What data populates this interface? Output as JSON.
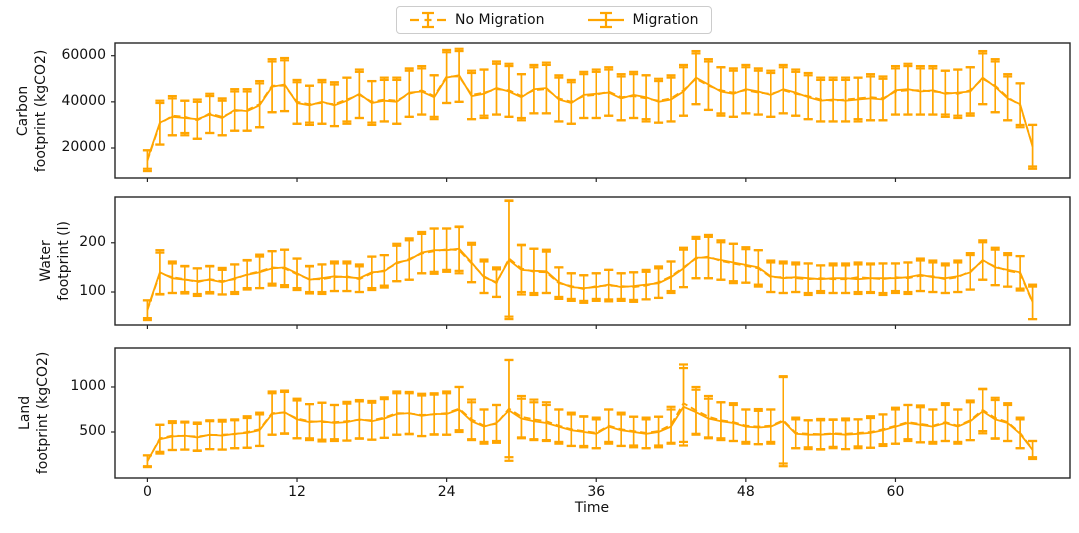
{
  "figure": {
    "xlabel": "Time",
    "x_ticks": [
      0,
      12,
      24,
      36,
      48,
      60
    ],
    "series_color": "#FFA500",
    "axis_color": "#262626",
    "legend": [
      {
        "label": "No Migration",
        "style": "dashed"
      },
      {
        "label": "Migration",
        "style": "solid"
      }
    ]
  },
  "chart_data": [
    {
      "type": "line",
      "id": "carbon",
      "ylabel_lines": [
        "Carbon",
        "footprint (kgCO2)"
      ],
      "ylim": [
        7000,
        65500
      ],
      "yticks": [
        20000,
        40000,
        60000
      ],
      "ytick_labels": [
        "20000",
        "40000",
        "60000"
      ],
      "x_start": 0,
      "x_step": 1,
      "n_points": 72,
      "series": [
        {
          "name": "No Migration",
          "style": "dashed",
          "values": [
            14500,
            30500,
            34000,
            33500,
            32000,
            35000,
            33500,
            36000,
            36500,
            39000,
            47000,
            47000,
            40000,
            39000,
            39500,
            39000,
            41000,
            43000,
            40000,
            41000,
            40500,
            43500,
            45000,
            42500,
            51000,
            51000,
            43000,
            44000,
            45500,
            45000,
            42500,
            45000,
            45500,
            41500,
            40000,
            42500,
            43000,
            44500,
            42000,
            42500,
            41500,
            40500,
            41500,
            45000,
            50000,
            47000,
            45000,
            44000,
            45000,
            44000,
            43500,
            45000,
            43500,
            42500,
            41000,
            40500,
            41000,
            41500,
            42000,
            41500,
            44500,
            45000,
            45000,
            44500,
            44000,
            43500,
            45000,
            50000,
            47000,
            42000,
            38500,
            21000
          ],
          "errors": [
            4500,
            9000,
            8500,
            7000,
            8000,
            8500,
            8000,
            8500,
            9000,
            10000,
            11500,
            11000,
            9500,
            8000,
            9000,
            9500,
            9500,
            10000,
            9000,
            9500,
            10000,
            10000,
            10500,
            9000,
            11500,
            11000,
            10500,
            10000,
            11000,
            11500,
            9500,
            10000,
            10500,
            10000,
            9500,
            9500,
            10000,
            10500,
            10000,
            9500,
            10000,
            9500,
            10000,
            11000,
            11000,
            10500,
            10000,
            10500,
            10000,
            9500,
            10000,
            10000,
            9500,
            10000,
            9500,
            9000,
            9500,
            9000,
            10000,
            9500,
            10000,
            10500,
            10500,
            10000,
            9500,
            10500,
            10000,
            11000,
            11500,
            10000,
            9500,
            9000
          ]
        },
        {
          "name": "Migration",
          "style": "solid",
          "values": [
            15000,
            31000,
            33500,
            33000,
            32500,
            34500,
            33000,
            36500,
            36000,
            38500,
            46500,
            47500,
            39500,
            38500,
            40000,
            38500,
            40500,
            43500,
            39500,
            40500,
            40000,
            44000,
            44500,
            42000,
            50500,
            51500,
            42500,
            43500,
            46000,
            44500,
            42000,
            45500,
            46000,
            41000,
            39500,
            43000,
            43500,
            44000,
            41500,
            43000,
            42000,
            40000,
            41000,
            44500,
            50500,
            47500,
            44500,
            43500,
            45500,
            44500,
            43000,
            45500,
            44000,
            42000,
            40500,
            41000,
            40500,
            41000,
            41500,
            41000,
            45000,
            45500,
            44500,
            45000,
            43500,
            44000,
            44500,
            50500,
            46500,
            41500,
            39000,
            20500
          ],
          "errors": [
            4000,
            9500,
            8000,
            7500,
            8500,
            8000,
            7500,
            9000,
            8500,
            9500,
            11000,
            11500,
            9000,
            8500,
            9500,
            9000,
            10000,
            10500,
            9500,
            9000,
            9500,
            10500,
            10000,
            9500,
            11000,
            11500,
            10000,
            10500,
            11500,
            11000,
            10000,
            10500,
            11000,
            9500,
            9000,
            10000,
            10500,
            10000,
            9500,
            10000,
            9500,
            9000,
            9500,
            10500,
            11500,
            11000,
            10500,
            10000,
            10500,
            10000,
            9500,
            10500,
            10000,
            9500,
            9000,
            9500,
            9000,
            9500,
            9500,
            9000,
            10500,
            11000,
            10000,
            10500,
            10000,
            10000,
            10500,
            11500,
            11000,
            9500,
            9000,
            9500
          ]
        }
      ]
    },
    {
      "type": "line",
      "id": "water",
      "ylabel_lines": [
        "Water",
        "footprint (l)"
      ],
      "ylim": [
        33,
        293
      ],
      "yticks": [
        100,
        200
      ],
      "ytick_labels": [
        "100",
        "200"
      ],
      "x_start": 0,
      "x_step": 1,
      "n_points": 72,
      "series": [
        {
          "name": "No Migration",
          "style": "dashed",
          "values": [
            63,
            138,
            130,
            126,
            120,
            126,
            122,
            126,
            136,
            142,
            150,
            148,
            136,
            126,
            126,
            130,
            132,
            126,
            138,
            144,
            158,
            167,
            178,
            183,
            187,
            185,
            158,
            132,
            118,
            168,
            148,
            141,
            140,
            118,
            112,
            106,
            112,
            113,
            112,
            110,
            113,
            120,
            132,
            150,
            168,
            172,
            163,
            158,
            153,
            148,
            130,
            130,
            128,
            126,
            128,
            126,
            126,
            130,
            128,
            126,
            130,
            128,
            133,
            132,
            126,
            130,
            142,
            163,
            152,
            143,
            138,
            78
          ],
          "errors": [
            20,
            42,
            32,
            26,
            28,
            26,
            27,
            30,
            28,
            34,
            33,
            38,
            32,
            26,
            30,
            28,
            30,
            26,
            34,
            31,
            36,
            42,
            40,
            46,
            42,
            47,
            38,
            34,
            28,
            118,
            48,
            47,
            42,
            32,
            26,
            28,
            26,
            32,
            26,
            30,
            28,
            32,
            30,
            40,
            40,
            44,
            38,
            40,
            34,
            37,
            30,
            32,
            28,
            32,
            26,
            28,
            28,
            30,
            28,
            32,
            28,
            32,
            31,
            32,
            28,
            30,
            37,
            38,
            38,
            32,
            35,
            33
          ]
        },
        {
          "name": "Migration",
          "style": "solid",
          "values": [
            65,
            140,
            128,
            125,
            122,
            125,
            120,
            128,
            135,
            140,
            148,
            150,
            138,
            125,
            128,
            132,
            130,
            128,
            140,
            142,
            160,
            165,
            180,
            185,
            185,
            188,
            160,
            130,
            120,
            165,
            145,
            143,
            142,
            120,
            110,
            108,
            110,
            115,
            110,
            112,
            115,
            118,
            130,
            148,
            170,
            170,
            165,
            160,
            155,
            150,
            132,
            128,
            130,
            128,
            126,
            128,
            128,
            126,
            128,
            128,
            128,
            130,
            135,
            130,
            128,
            132,
            140,
            165,
            150,
            145,
            140,
            80
          ],
          "errors": [
            18,
            45,
            30,
            28,
            26,
            28,
            25,
            28,
            30,
            32,
            35,
            36,
            30,
            28,
            28,
            30,
            28,
            28,
            32,
            33,
            38,
            40,
            42,
            44,
            44,
            45,
            40,
            32,
            30,
            120,
            50,
            45,
            44,
            30,
            28,
            26,
            28,
            30,
            28,
            28,
            30,
            30,
            32,
            38,
            42,
            42,
            40,
            38,
            36,
            35,
            32,
            30,
            30,
            30,
            28,
            30,
            30,
            30,
            30,
            30,
            30,
            30,
            33,
            30,
            30,
            32,
            35,
            40,
            36,
            34,
            33,
            35
          ]
        }
      ]
    },
    {
      "type": "line",
      "id": "land",
      "ylabel_lines": [
        "Land",
        "footprint (kgCO2)"
      ],
      "ylim": [
        -11,
        1433
      ],
      "yticks": [
        500,
        1000
      ],
      "ytick_labels": [
        "500",
        "1000"
      ],
      "x_start": 0,
      "x_step": 1,
      "n_points": 72,
      "series": [
        {
          "name": "No Migration",
          "style": "dashed",
          "values": [
            175,
            430,
            460,
            455,
            450,
            465,
            470,
            475,
            500,
            530,
            710,
            715,
            650,
            620,
            610,
            610,
            620,
            635,
            630,
            660,
            710,
            705,
            690,
            695,
            710,
            760,
            640,
            570,
            590,
            760,
            670,
            640,
            620,
            570,
            530,
            510,
            490,
            570,
            530,
            510,
            490,
            510,
            580,
            820,
            740,
            670,
            630,
            610,
            570,
            560,
            570,
            630,
            490,
            480,
            475,
            485,
            480,
            490,
            500,
            530,
            570,
            610,
            590,
            570,
            610,
            570,
            630,
            745,
            655,
            610,
            490,
            310
          ],
          "errors": [
            65,
            150,
            160,
            150,
            155,
            155,
            165,
            155,
            175,
            185,
            240,
            230,
            220,
            190,
            215,
            190,
            215,
            205,
            215,
            225,
            240,
            225,
            235,
            220,
            240,
            240,
            220,
            180,
            210,
            540,
            230,
            220,
            210,
            180,
            185,
            165,
            170,
            180,
            185,
            160,
            170,
            160,
            200,
            430,
            260,
            230,
            200,
            210,
            180,
            195,
            180,
            480,
            170,
            150,
            170,
            150,
            170,
            150,
            175,
            165,
            200,
            190,
            205,
            180,
            210,
            180,
            220,
            235,
            225,
            210,
            170,
            90
          ]
        },
        {
          "name": "Migration",
          "style": "solid",
          "values": [
            180,
            420,
            450,
            460,
            440,
            470,
            460,
            480,
            490,
            520,
            700,
            720,
            640,
            610,
            620,
            600,
            610,
            640,
            620,
            650,
            700,
            710,
            680,
            700,
            700,
            750,
            620,
            560,
            600,
            740,
            650,
            620,
            600,
            560,
            520,
            500,
            480,
            560,
            520,
            500,
            480,
            500,
            560,
            780,
            720,
            650,
            620,
            600,
            560,
            550,
            560,
            620,
            480,
            470,
            470,
            480,
            470,
            480,
            490,
            520,
            560,
            600,
            580,
            560,
            600,
            560,
            620,
            730,
            640,
            600,
            480,
            300
          ],
          "errors": [
            60,
            160,
            150,
            155,
            150,
            160,
            155,
            160,
            165,
            175,
            230,
            240,
            210,
            200,
            205,
            200,
            205,
            215,
            205,
            215,
            230,
            235,
            225,
            230,
            230,
            250,
            210,
            190,
            200,
            560,
            220,
            210,
            200,
            190,
            175,
            170,
            160,
            190,
            175,
            170,
            160,
            170,
            190,
            430,
            250,
            220,
            210,
            200,
            190,
            185,
            190,
            500,
            160,
            160,
            160,
            160,
            160,
            160,
            165,
            175,
            190,
            200,
            195,
            190,
            200,
            190,
            210,
            245,
            215,
            200,
            160,
            100
          ]
        }
      ]
    }
  ]
}
